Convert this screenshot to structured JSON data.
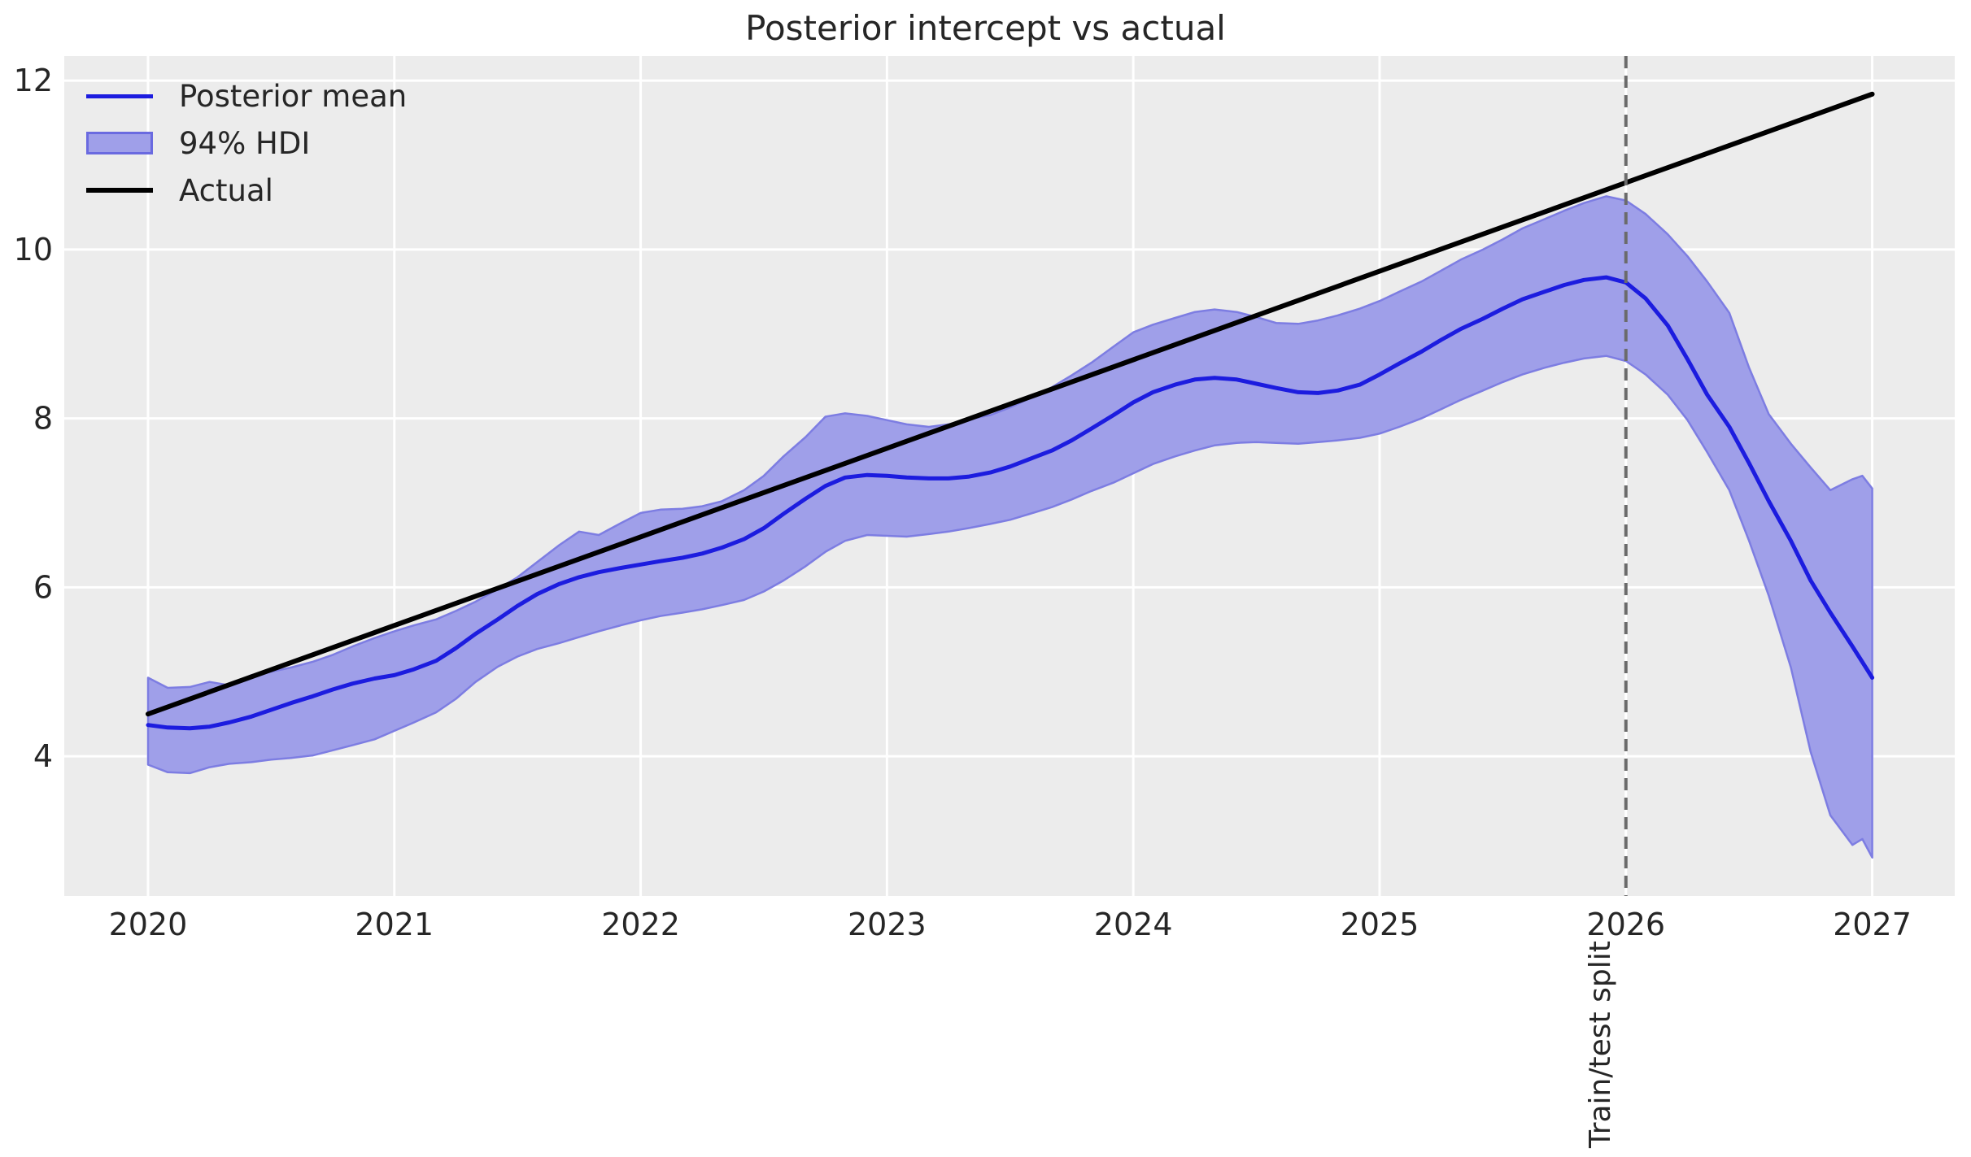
{
  "title": "Posterior intercept vs actual",
  "split_label": "Train/test split",
  "colors": {
    "figure_bg": "#ffffff",
    "axes_bg": "#ececec",
    "grid": "#ffffff",
    "mean_line": "#1c1cdf",
    "band_fill": "#9f9fe9",
    "band_edge": "#7d7de2",
    "actual_line": "#000000",
    "split_line": "#6b6b6b",
    "text": "#262626"
  },
  "legend": {
    "position": "upper left",
    "items": [
      {
        "label": "Posterior mean",
        "type": "line",
        "color": "#1c1cdf"
      },
      {
        "label": "94% HDI",
        "type": "patch",
        "fill": "#9f9fe9",
        "edge": "#6a6ae0"
      },
      {
        "label": "Actual",
        "type": "line",
        "color": "#000000"
      }
    ]
  },
  "chart_data": {
    "type": "line",
    "title": "Posterior intercept vs actual",
    "xlabel": "",
    "ylabel": "",
    "grid": true,
    "x_ticks": [
      2020,
      2021,
      2022,
      2023,
      2024,
      2025,
      2026,
      2027
    ],
    "y_ticks": [
      4,
      6,
      8,
      10,
      12
    ],
    "x_range": [
      2019.66,
      2027.335
    ],
    "y_range": [
      2.345,
      12.29
    ],
    "split_x": 2026,
    "series": [
      {
        "name": "Posterior mean",
        "x": [
          2020.0,
          2020.08,
          2020.17,
          2020.25,
          2020.33,
          2020.42,
          2020.5,
          2020.58,
          2020.67,
          2020.75,
          2020.83,
          2020.92,
          2021.0,
          2021.08,
          2021.17,
          2021.25,
          2021.33,
          2021.42,
          2021.5,
          2021.58,
          2021.67,
          2021.75,
          2021.83,
          2021.92,
          2022.0,
          2022.08,
          2022.17,
          2022.25,
          2022.33,
          2022.42,
          2022.5,
          2022.58,
          2022.67,
          2022.75,
          2022.83,
          2022.92,
          2023.0,
          2023.08,
          2023.17,
          2023.25,
          2023.33,
          2023.42,
          2023.5,
          2023.58,
          2023.67,
          2023.75,
          2023.83,
          2023.92,
          2024.0,
          2024.08,
          2024.17,
          2024.25,
          2024.33,
          2024.42,
          2024.5,
          2024.58,
          2024.67,
          2024.75,
          2024.83,
          2024.92,
          2025.0,
          2025.08,
          2025.17,
          2025.25,
          2025.33,
          2025.42,
          2025.5,
          2025.58,
          2025.67,
          2025.75,
          2025.83,
          2025.92,
          2026.0,
          2026.08,
          2026.17,
          2026.25,
          2026.33,
          2026.42,
          2026.5,
          2026.58,
          2026.67,
          2026.75,
          2026.83,
          2026.92,
          2027.0
        ],
        "y": [
          4.37,
          4.34,
          4.33,
          4.35,
          4.4,
          4.47,
          4.55,
          4.63,
          4.71,
          4.79,
          4.86,
          4.92,
          4.96,
          5.03,
          5.13,
          5.28,
          5.45,
          5.62,
          5.78,
          5.92,
          6.04,
          6.12,
          6.18,
          6.23,
          6.27,
          6.31,
          6.35,
          6.4,
          6.47,
          6.57,
          6.7,
          6.87,
          7.05,
          7.2,
          7.3,
          7.33,
          7.32,
          7.3,
          7.29,
          7.29,
          7.31,
          7.36,
          7.43,
          7.52,
          7.62,
          7.74,
          7.88,
          8.04,
          8.19,
          8.31,
          8.4,
          8.46,
          8.48,
          8.46,
          8.41,
          8.36,
          8.31,
          8.3,
          8.33,
          8.4,
          8.52,
          8.65,
          8.79,
          8.93,
          9.06,
          9.18,
          9.3,
          9.41,
          9.5,
          9.58,
          9.64,
          9.67,
          9.61,
          9.42,
          9.1,
          8.7,
          8.28,
          7.9,
          7.47,
          7.02,
          6.55,
          6.08,
          5.7,
          5.3,
          4.93
        ]
      },
      {
        "name": "94% HDI",
        "x": [
          2020.0,
          2020.08,
          2020.17,
          2020.25,
          2020.33,
          2020.42,
          2020.5,
          2020.58,
          2020.67,
          2020.75,
          2020.83,
          2020.92,
          2021.0,
          2021.08,
          2021.17,
          2021.25,
          2021.33,
          2021.42,
          2021.5,
          2021.58,
          2021.67,
          2021.75,
          2021.83,
          2021.92,
          2022.0,
          2022.08,
          2022.17,
          2022.25,
          2022.33,
          2022.42,
          2022.5,
          2022.58,
          2022.67,
          2022.75,
          2022.83,
          2022.92,
          2023.0,
          2023.08,
          2023.17,
          2023.25,
          2023.33,
          2023.42,
          2023.5,
          2023.58,
          2023.67,
          2023.75,
          2023.83,
          2023.92,
          2024.0,
          2024.08,
          2024.17,
          2024.25,
          2024.33,
          2024.42,
          2024.5,
          2024.58,
          2024.67,
          2024.75,
          2024.83,
          2024.92,
          2025.0,
          2025.08,
          2025.17,
          2025.25,
          2025.33,
          2025.42,
          2025.5,
          2025.58,
          2025.67,
          2025.75,
          2025.83,
          2025.92,
          2026.0,
          2026.08,
          2026.17,
          2026.25,
          2026.33,
          2026.42,
          2026.5,
          2026.58,
          2026.67,
          2026.75,
          2026.83,
          2026.92,
          2026.96,
          2027.0
        ],
        "lo": [
          3.9,
          3.81,
          3.8,
          3.87,
          3.91,
          3.93,
          3.96,
          3.98,
          4.01,
          4.07,
          4.13,
          4.2,
          4.3,
          4.4,
          4.52,
          4.68,
          4.88,
          5.06,
          5.18,
          5.27,
          5.34,
          5.41,
          5.48,
          5.55,
          5.61,
          5.66,
          5.7,
          5.74,
          5.79,
          5.85,
          5.95,
          6.08,
          6.25,
          6.42,
          6.55,
          6.62,
          6.61,
          6.6,
          6.63,
          6.66,
          6.7,
          6.75,
          6.8,
          6.87,
          6.95,
          7.04,
          7.14,
          7.24,
          7.35,
          7.46,
          7.55,
          7.62,
          7.68,
          7.71,
          7.72,
          7.71,
          7.7,
          7.72,
          7.74,
          7.77,
          7.82,
          7.9,
          8.0,
          8.11,
          8.22,
          8.33,
          8.43,
          8.52,
          8.6,
          8.66,
          8.71,
          8.74,
          8.68,
          8.52,
          8.28,
          7.98,
          7.6,
          7.15,
          6.55,
          5.9,
          5.05,
          4.05,
          3.3,
          2.95,
          3.02,
          2.8
        ],
        "hi": [
          4.93,
          4.81,
          4.82,
          4.88,
          4.84,
          4.96,
          5.0,
          5.05,
          5.12,
          5.2,
          5.3,
          5.4,
          5.48,
          5.55,
          5.62,
          5.72,
          5.83,
          5.98,
          6.12,
          6.3,
          6.5,
          6.66,
          6.62,
          6.76,
          6.88,
          6.92,
          6.93,
          6.96,
          7.02,
          7.15,
          7.32,
          7.55,
          7.78,
          8.02,
          8.06,
          8.03,
          7.98,
          7.93,
          7.9,
          7.93,
          7.99,
          8.04,
          8.13,
          8.24,
          8.37,
          8.51,
          8.66,
          8.85,
          9.02,
          9.11,
          9.19,
          9.26,
          9.29,
          9.26,
          9.2,
          9.13,
          9.12,
          9.16,
          9.22,
          9.3,
          9.39,
          9.5,
          9.62,
          9.75,
          9.88,
          10.0,
          10.12,
          10.25,
          10.36,
          10.46,
          10.55,
          10.63,
          10.58,
          10.42,
          10.18,
          9.92,
          9.62,
          9.25,
          8.6,
          8.05,
          7.7,
          7.42,
          7.15,
          7.28,
          7.32,
          7.17
        ]
      },
      {
        "name": "Actual",
        "x": [
          2020.0,
          2027.0
        ],
        "y": [
          4.5,
          11.84
        ]
      }
    ]
  }
}
